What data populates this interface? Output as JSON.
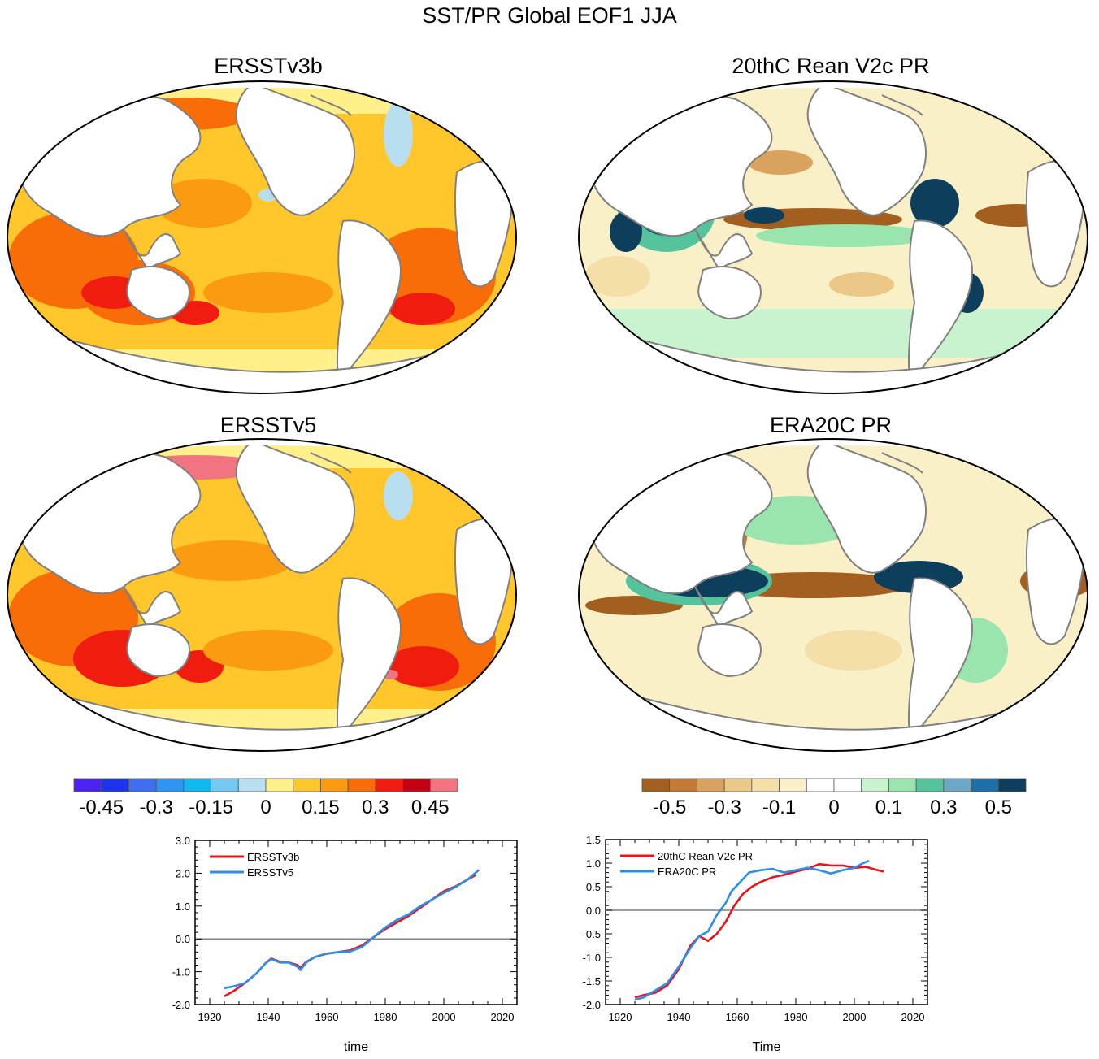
{
  "main_title": "SST/PR Global EOF1 JJA",
  "panels": {
    "sst_a": "ERSSTv3b",
    "pr_a": "20thC Rean V2c PR",
    "sst_b": "ERSSTv5",
    "pr_b": "ERA20C PR"
  },
  "colors": {
    "land": "#ffffff",
    "coast": "#808080",
    "sst_palette": [
      "#4b22ef",
      "#1c34ee",
      "#3d6ef0",
      "#2f95f0",
      "#10b8ee",
      "#74c9f2",
      "#b8def0",
      "#fff08c",
      "#ffc72b",
      "#fb9b12",
      "#f86d07",
      "#f01c0f",
      "#c60015",
      "#f17480"
    ],
    "pr_palette": [
      "#a35f20",
      "#c27a35",
      "#d9a25e",
      "#ecc887",
      "#f4dfa8",
      "#faf0c8",
      "#ffffff",
      "#ffffff",
      "#c9f3cf",
      "#99e5ad",
      "#55c49d",
      "#6fa7c8",
      "#1d6fa8",
      "#0d3e5c"
    ]
  },
  "colorbars": {
    "sst": {
      "labels": [
        "-0.45",
        "-0.3",
        "-0.15",
        "0",
        "0.15",
        "0.3",
        "0.45"
      ]
    },
    "pr": {
      "labels": [
        "-0.5",
        "-0.3",
        "-0.1",
        "0",
        "0.1",
        "0.3",
        "0.5"
      ]
    }
  },
  "chart_data": [
    {
      "type": "line",
      "name": "sst_pc",
      "xlabel": "time",
      "ylabel": "",
      "xlim": [
        1915,
        2025
      ],
      "ylim": [
        -2.0,
        3.0
      ],
      "xticks": [
        1920,
        1940,
        1960,
        1980,
        2000,
        2020
      ],
      "yticks": [
        -2.0,
        -1.0,
        0.0,
        1.0,
        2.0,
        3.0
      ],
      "ytick_labels": [
        "-2.0",
        "-1.0",
        "0.0",
        "1.0",
        "2.0",
        "3.0"
      ],
      "series": [
        {
          "name": "ERSSTv3b",
          "color": "#e8141b",
          "x": [
            1925,
            1928,
            1932,
            1936,
            1939,
            1941,
            1944,
            1947,
            1950,
            1951,
            1953,
            1956,
            1960,
            1964,
            1968,
            1972,
            1976,
            1980,
            1984,
            1988,
            1992,
            1996,
            2000,
            2004,
            2008,
            2011
          ],
          "values": [
            -1.75,
            -1.6,
            -1.35,
            -1.05,
            -0.75,
            -0.6,
            -0.7,
            -0.72,
            -0.8,
            -0.88,
            -0.7,
            -0.55,
            -0.45,
            -0.4,
            -0.35,
            -0.2,
            0.05,
            0.3,
            0.5,
            0.7,
            0.95,
            1.2,
            1.45,
            1.6,
            1.8,
            1.95
          ]
        },
        {
          "name": "ERSSTv5",
          "color": "#2e8de6",
          "x": [
            1925,
            1928,
            1932,
            1936,
            1939,
            1941,
            1944,
            1947,
            1950,
            1951,
            1953,
            1956,
            1960,
            1964,
            1968,
            1972,
            1976,
            1980,
            1984,
            1988,
            1992,
            1996,
            2000,
            2004,
            2008,
            2012
          ],
          "values": [
            -1.5,
            -1.45,
            -1.35,
            -1.05,
            -0.75,
            -0.62,
            -0.72,
            -0.72,
            -0.85,
            -0.95,
            -0.72,
            -0.55,
            -0.45,
            -0.4,
            -0.38,
            -0.25,
            0.05,
            0.35,
            0.58,
            0.75,
            1.0,
            1.2,
            1.4,
            1.58,
            1.8,
            2.1
          ]
        }
      ]
    },
    {
      "type": "line",
      "name": "pr_pc",
      "xlabel": "Time",
      "ylabel": "",
      "xlim": [
        1915,
        2025
      ],
      "ylim": [
        -2.0,
        1.5
      ],
      "xticks": [
        1920,
        1940,
        1960,
        1980,
        2000,
        2020
      ],
      "yticks": [
        -2.0,
        -1.5,
        -1.0,
        -0.5,
        0.0,
        0.5,
        1.0,
        1.5
      ],
      "ytick_labels": [
        "-2.0",
        "-1.5",
        "-1.0",
        "-0.5",
        "0.0",
        "0.5",
        "1.0",
        "1.5"
      ],
      "series": [
        {
          "name": "20thC Rean V2c PR",
          "color": "#e8141b",
          "x": [
            1925,
            1928,
            1932,
            1936,
            1940,
            1944,
            1947,
            1950,
            1953,
            1956,
            1959,
            1962,
            1965,
            1968,
            1972,
            1976,
            1980,
            1984,
            1988,
            1992,
            1996,
            2000,
            2004,
            2008,
            2010
          ],
          "values": [
            -1.85,
            -1.8,
            -1.75,
            -1.6,
            -1.25,
            -0.75,
            -0.55,
            -0.65,
            -0.5,
            -0.25,
            0.1,
            0.35,
            0.5,
            0.6,
            0.7,
            0.75,
            0.82,
            0.88,
            0.98,
            0.95,
            0.95,
            0.9,
            0.92,
            0.85,
            0.82
          ]
        },
        {
          "name": "ERA20C PR",
          "color": "#2e8de6",
          "x": [
            1925,
            1928,
            1932,
            1936,
            1940,
            1944,
            1947,
            1950,
            1953,
            1956,
            1958,
            1961,
            1964,
            1968,
            1972,
            1976,
            1980,
            1984,
            1988,
            1992,
            1996,
            2000,
            2003,
            2005
          ],
          "values": [
            -1.9,
            -1.85,
            -1.7,
            -1.55,
            -1.2,
            -0.8,
            -0.55,
            -0.45,
            -0.1,
            0.15,
            0.4,
            0.6,
            0.8,
            0.85,
            0.88,
            0.8,
            0.85,
            0.9,
            0.85,
            0.78,
            0.85,
            0.9,
            1.0,
            1.05
          ]
        }
      ]
    }
  ]
}
